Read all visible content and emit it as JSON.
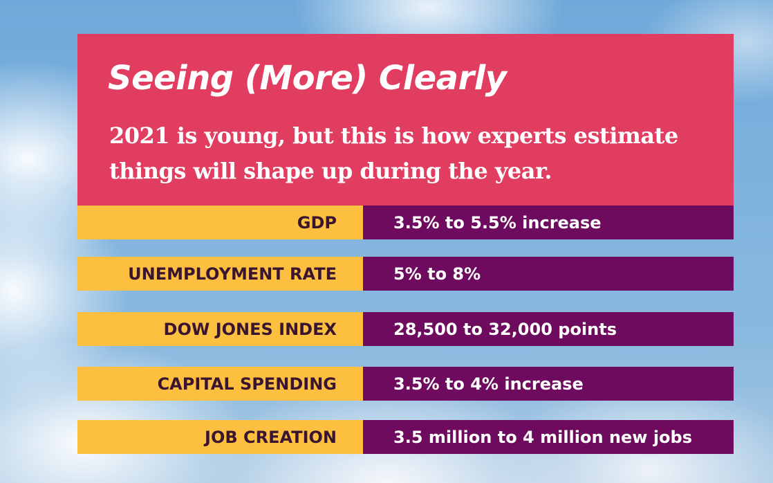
{
  "headline": "Seeing (More) Clearly",
  "subheadline": "2021 is young, but this is how experts estimate things will shape up during the year.",
  "stats": [
    {
      "label": "GDP",
      "value": "3.5% to 5.5% increase"
    },
    {
      "label": "UNEMPLOYMENT RATE",
      "value": "5% to 8%"
    },
    {
      "label": "DOW JONES INDEX",
      "value": "28,500 to 32,000 points"
    },
    {
      "label": "CAPITAL SPENDING",
      "value": "3.5% to 4% increase"
    },
    {
      "label": "JOB CREATION",
      "value": "3.5 million to 4 million new jobs"
    }
  ],
  "colors": {
    "header_bg": "#e13d60",
    "label_bg": "#fdbf3f",
    "value_bg": "#6e0b5e",
    "label_text": "#3a1530",
    "value_text": "#ffffff"
  }
}
